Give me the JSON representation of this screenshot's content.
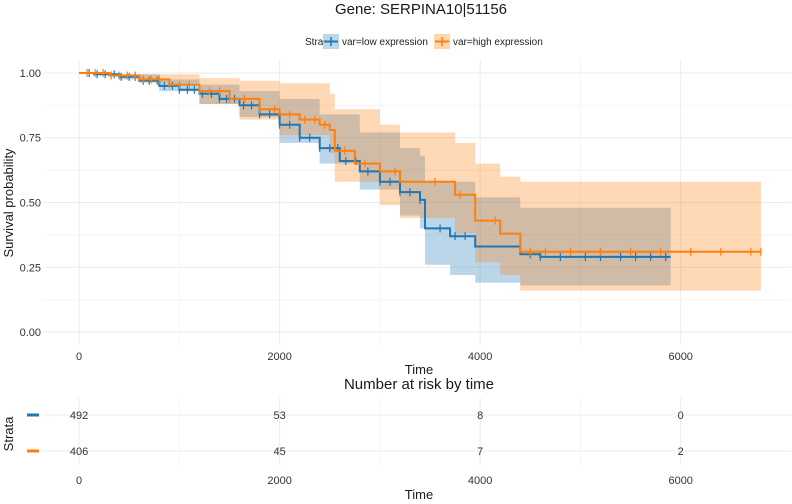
{
  "title": "Gene: SERPINA10|51156",
  "legend": {
    "title": "Strata",
    "items": [
      {
        "label": "var=low expression",
        "color": "#1f77b4"
      },
      {
        "label": "var=high expression",
        "color": "#ff7f0e"
      }
    ]
  },
  "chart_data": [
    {
      "type": "line",
      "title": "Gene: SERPINA10|51156",
      "xlabel": "Time",
      "ylabel": "Survival probability",
      "xlim": [
        -350,
        7100
      ],
      "ylim": [
        -0.05,
        1.05
      ],
      "x_ticks": [
        0,
        2000,
        4000,
        6000
      ],
      "y_ticks": [
        0.0,
        0.25,
        0.5,
        0.75,
        1.0
      ],
      "y_tick_labels": [
        "0.00",
        "0.25",
        "0.50",
        "0.75",
        "1.00"
      ],
      "grid": true,
      "legend_position": "top",
      "series": [
        {
          "name": "var=low expression",
          "color": "#1f77b4",
          "step": [
            [
              0,
              1.0
            ],
            [
              150,
              0.995
            ],
            [
              400,
              0.985
            ],
            [
              600,
              0.97
            ],
            [
              800,
              0.95
            ],
            [
              1000,
              0.935
            ],
            [
              1200,
              0.92
            ],
            [
              1400,
              0.9
            ],
            [
              1600,
              0.875
            ],
            [
              1800,
              0.84
            ],
            [
              2000,
              0.8
            ],
            [
              2200,
              0.75
            ],
            [
              2400,
              0.71
            ],
            [
              2600,
              0.66
            ],
            [
              2800,
              0.62
            ],
            [
              3000,
              0.58
            ],
            [
              3200,
              0.54
            ],
            [
              3400,
              0.51
            ],
            [
              3450,
              0.4
            ],
            [
              3700,
              0.37
            ],
            [
              3950,
              0.33
            ],
            [
              4400,
              0.3
            ],
            [
              4600,
              0.29
            ],
            [
              5900,
              0.29
            ]
          ],
          "ci_upper": [
            [
              0,
              1.0
            ],
            [
              400,
              0.995
            ],
            [
              800,
              0.975
            ],
            [
              1200,
              0.955
            ],
            [
              1600,
              0.93
            ],
            [
              2000,
              0.9
            ],
            [
              2400,
              0.84
            ],
            [
              2800,
              0.77
            ],
            [
              3200,
              0.71
            ],
            [
              3400,
              0.68
            ],
            [
              3450,
              0.58
            ],
            [
              3950,
              0.52
            ],
            [
              4400,
              0.48
            ],
            [
              5900,
              0.48
            ]
          ],
          "ci_lower": [
            [
              0,
              1.0
            ],
            [
              400,
              0.975
            ],
            [
              800,
              0.93
            ],
            [
              1200,
              0.88
            ],
            [
              1600,
              0.83
            ],
            [
              2000,
              0.73
            ],
            [
              2400,
              0.65
            ],
            [
              2800,
              0.55
            ],
            [
              3200,
              0.45
            ],
            [
              3400,
              0.4
            ],
            [
              3450,
              0.26
            ],
            [
              3700,
              0.22
            ],
            [
              3950,
              0.19
            ],
            [
              4400,
              0.18
            ],
            [
              5900,
              0.18
            ]
          ],
          "censored_x": [
            100,
            180,
            260,
            350,
            420,
            500,
            560,
            640,
            700,
            780,
            850,
            930,
            1000,
            1080,
            1150,
            1230,
            1320,
            1400,
            1470,
            1550,
            1640,
            1720,
            1800,
            1900,
            2000,
            2100,
            2200,
            2300,
            2400,
            2500,
            2580,
            2660,
            2760,
            2880,
            3000,
            3100,
            3200,
            3300,
            3400,
            3600,
            3750,
            3850,
            4500,
            4600,
            4800,
            5050,
            5200,
            5400,
            5550,
            5700,
            5850
          ]
        },
        {
          "name": "var=high expression",
          "color": "#ff7f0e",
          "step": [
            [
              0,
              1.0
            ],
            [
              300,
              0.99
            ],
            [
              600,
              0.975
            ],
            [
              900,
              0.955
            ],
            [
              1200,
              0.93
            ],
            [
              1500,
              0.9
            ],
            [
              1800,
              0.86
            ],
            [
              2000,
              0.84
            ],
            [
              2200,
              0.82
            ],
            [
              2400,
              0.8
            ],
            [
              2500,
              0.78
            ],
            [
              2550,
              0.7
            ],
            [
              2750,
              0.65
            ],
            [
              3000,
              0.62
            ],
            [
              3200,
              0.58
            ],
            [
              3750,
              0.53
            ],
            [
              3950,
              0.43
            ],
            [
              4200,
              0.38
            ],
            [
              4400,
              0.31
            ],
            [
              6800,
              0.31
            ]
          ],
          "ci_upper": [
            [
              0,
              1.0
            ],
            [
              600,
              0.995
            ],
            [
              1200,
              0.98
            ],
            [
              1600,
              0.97
            ],
            [
              2000,
              0.96
            ],
            [
              2500,
              0.92
            ],
            [
              2550,
              0.86
            ],
            [
              3000,
              0.8
            ],
            [
              3200,
              0.77
            ],
            [
              3750,
              0.73
            ],
            [
              3950,
              0.65
            ],
            [
              4200,
              0.6
            ],
            [
              4400,
              0.58
            ],
            [
              6800,
              0.58
            ]
          ],
          "ci_lower": [
            [
              0,
              1.0
            ],
            [
              600,
              0.96
            ],
            [
              1200,
              0.88
            ],
            [
              1600,
              0.82
            ],
            [
              2000,
              0.76
            ],
            [
              2500,
              0.69
            ],
            [
              2550,
              0.58
            ],
            [
              3000,
              0.49
            ],
            [
              3200,
              0.44
            ],
            [
              3750,
              0.38
            ],
            [
              3950,
              0.27
            ],
            [
              4200,
              0.22
            ],
            [
              4400,
              0.16
            ],
            [
              6800,
              0.16
            ]
          ],
          "censored_x": [
            80,
            160,
            240,
            320,
            400,
            480,
            560,
            640,
            720,
            800,
            900,
            1000,
            1100,
            1200,
            1300,
            1400,
            1500,
            1650,
            1800,
            1950,
            2100,
            2250,
            2350,
            2450,
            2650,
            2850,
            3150,
            3550,
            3800,
            4150,
            4500,
            4650,
            4900,
            5200,
            5500,
            5800,
            6100,
            6400,
            6700,
            6800
          ]
        }
      ]
    },
    {
      "type": "table",
      "title": "Number at risk by time",
      "xlabel": "Time",
      "ylabel": "Strata",
      "x_ticks": [
        0,
        2000,
        4000,
        6000
      ],
      "rows": [
        {
          "color": "#1f77b4",
          "values": [
            "492",
            "53",
            "8",
            "0"
          ]
        },
        {
          "color": "#ff7f0e",
          "values": [
            "406",
            "45",
            "7",
            "2"
          ]
        }
      ]
    }
  ]
}
